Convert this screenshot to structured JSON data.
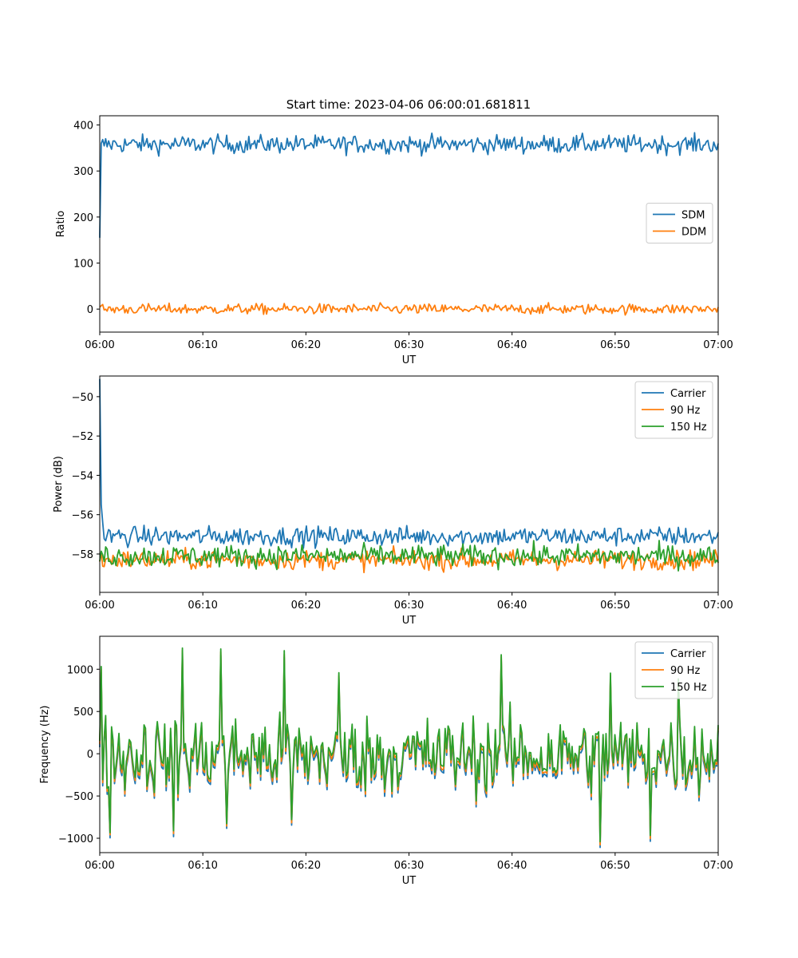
{
  "figure_title": "Start time: 2023-04-06 06:00:01.681811",
  "chart_data": [
    {
      "type": "line",
      "title": "Start time: 2023-04-06 06:00:01.681811",
      "xlabel": "UT",
      "ylabel": "Ratio",
      "x_range": [
        "06:00",
        "07:00"
      ],
      "x_ticks": [
        "06:00",
        "06:10",
        "06:20",
        "06:30",
        "06:40",
        "06:50",
        "07:00"
      ],
      "ylim": [
        -50,
        420
      ],
      "y_ticks": [
        0,
        100,
        200,
        300,
        400
      ],
      "legend_position": "center-right",
      "series": [
        {
          "name": "SDM",
          "color": "#1f77b4",
          "start": 155,
          "spike_to": 360,
          "mean": 358,
          "amplitude": 14,
          "points": 420
        },
        {
          "name": "DDM",
          "color": "#ff7f0e",
          "mean": 0,
          "amplitude": 8,
          "points": 420
        }
      ]
    },
    {
      "type": "line",
      "xlabel": "UT",
      "ylabel": "Power (dB)",
      "x_range": [
        "06:00",
        "07:00"
      ],
      "x_ticks": [
        "06:00",
        "06:10",
        "06:20",
        "06:30",
        "06:40",
        "06:50",
        "07:00"
      ],
      "ylim": [
        -59.95,
        -48.95
      ],
      "y_ticks": [
        -58,
        -56,
        -54,
        -52,
        -50
      ],
      "legend_position": "top-right",
      "series": [
        {
          "name": "Carrier",
          "color": "#1f77b4",
          "start": -49.1,
          "mean": -57.1,
          "amplitude": 0.35,
          "points": 420
        },
        {
          "name": "90 Hz",
          "color": "#ff7f0e",
          "mean": -58.3,
          "amplitude": 0.35,
          "points": 420
        },
        {
          "name": "150 Hz",
          "color": "#2ca02c",
          "mean": -58.1,
          "amplitude": 0.4,
          "points": 420
        }
      ]
    },
    {
      "type": "line",
      "xlabel": "UT",
      "ylabel": "Frequency (Hz)",
      "x_range": [
        "06:00",
        "07:00"
      ],
      "x_ticks": [
        "06:00",
        "06:10",
        "06:20",
        "06:30",
        "06:40",
        "06:50",
        "07:00"
      ],
      "ylim": [
        -1170,
        1390
      ],
      "y_ticks": [
        -1000,
        -500,
        0,
        500,
        1000
      ],
      "legend_position": "top-right",
      "series": [
        {
          "name": "Carrier",
          "color": "#1f77b4",
          "offset": -70,
          "points": 420
        },
        {
          "name": "90 Hz",
          "color": "#ff7f0e",
          "offset": -35,
          "points": 420
        },
        {
          "name": "150 Hz",
          "color": "#2ca02c",
          "offset": 0,
          "points": 420
        }
      ],
      "noise_amplitude": 380,
      "peaks": [
        [
          0.002,
          1040
        ],
        [
          0.017,
          -930
        ],
        [
          0.134,
          1260
        ],
        [
          0.12,
          -910
        ],
        [
          0.195,
          1235
        ],
        [
          0.206,
          -820
        ],
        [
          0.298,
          1215
        ],
        [
          0.31,
          -780
        ],
        [
          0.387,
          960
        ],
        [
          0.65,
          1180
        ],
        [
          0.81,
          -1040
        ],
        [
          0.825,
          960
        ],
        [
          0.935,
          880
        ],
        [
          0.89,
          -960
        ]
      ]
    }
  ]
}
